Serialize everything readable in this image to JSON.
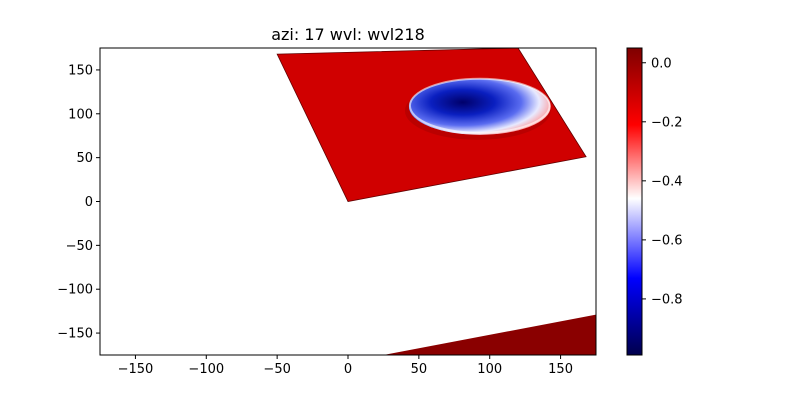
{
  "chart_data": {
    "type": "heatmap",
    "title": "azi: 17 wvl: wvl218",
    "xlabel": "",
    "ylabel": "",
    "xlim": [
      -175,
      175
    ],
    "ylim": [
      -175,
      175
    ],
    "x_ticks": [
      -150,
      -100,
      -50,
      0,
      50,
      100,
      150
    ],
    "y_ticks": [
      150,
      100,
      50,
      0,
      -50,
      -100,
      -150
    ],
    "colorbar": {
      "colormap": "seismic",
      "vmin": -0.99,
      "vmax": 0.05,
      "ticks": [
        0.0,
        -0.2,
        -0.4,
        -0.6,
        -0.8
      ],
      "tick_labels": [
        "0.0",
        "−0.2",
        "−0.4",
        "−0.6",
        "−0.8"
      ]
    },
    "regions": [
      {
        "name": "upper tilted plane",
        "value": -0.12,
        "corners": [
          [
            -50,
            168
          ],
          [
            120,
            175
          ],
          [
            168,
            51
          ],
          [
            0,
            0
          ]
        ]
      },
      {
        "name": "crater",
        "value": -0.85,
        "center": [
          93,
          108
        ],
        "radii": [
          50,
          32
        ],
        "rim_value": -0.2
      },
      {
        "name": "lower plane",
        "value": 0.02,
        "corners": [
          [
            25,
            -175
          ],
          [
            175,
            -129
          ],
          [
            175,
            -175
          ]
        ]
      }
    ]
  }
}
